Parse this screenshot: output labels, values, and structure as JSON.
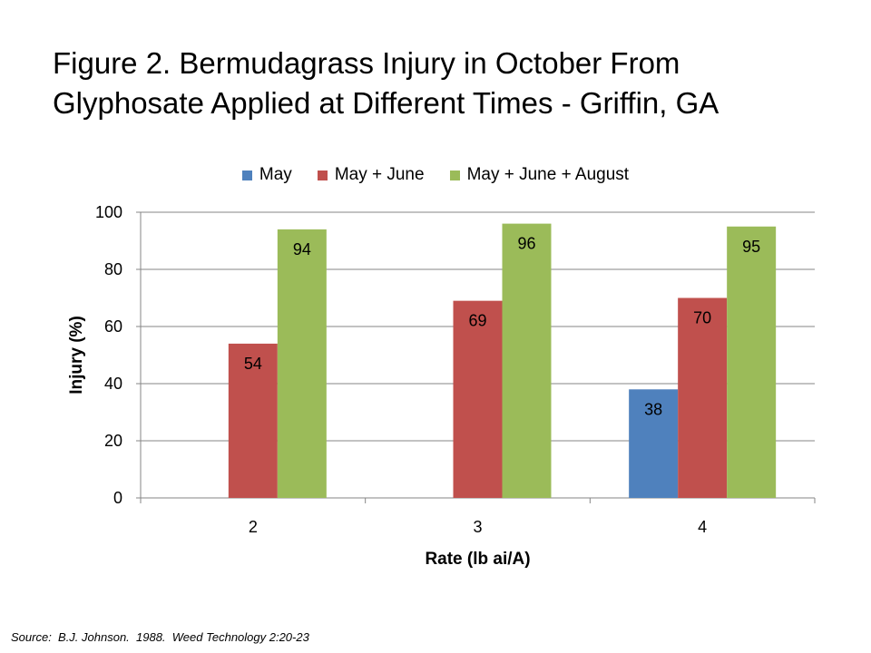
{
  "title_line1": "Figure 2. Bermudagrass Injury in October From",
  "title_line2": "Glyphosate Applied at Different Times - Griffin, GA",
  "source": "Source:  B.J. Johnson.  1988.  Weed Technology 2:20-23",
  "chart_data": {
    "type": "bar",
    "categories": [
      "2",
      "3",
      "4"
    ],
    "series": [
      {
        "name": "May",
        "color": "#4F81BD",
        "values": [
          null,
          null,
          38
        ]
      },
      {
        "name": "May + June",
        "color": "#C0504D",
        "values": [
          54,
          69,
          70
        ]
      },
      {
        "name": "May + June + August",
        "color": "#9BBB59",
        "values": [
          94,
          96,
          95
        ]
      }
    ],
    "xlabel": "Rate (lb ai/A)",
    "ylabel": "Injury (%)",
    "ylim": [
      0,
      100
    ],
    "yticks": [
      0,
      20,
      40,
      60,
      80,
      100
    ],
    "grid": true,
    "legend": "top"
  }
}
